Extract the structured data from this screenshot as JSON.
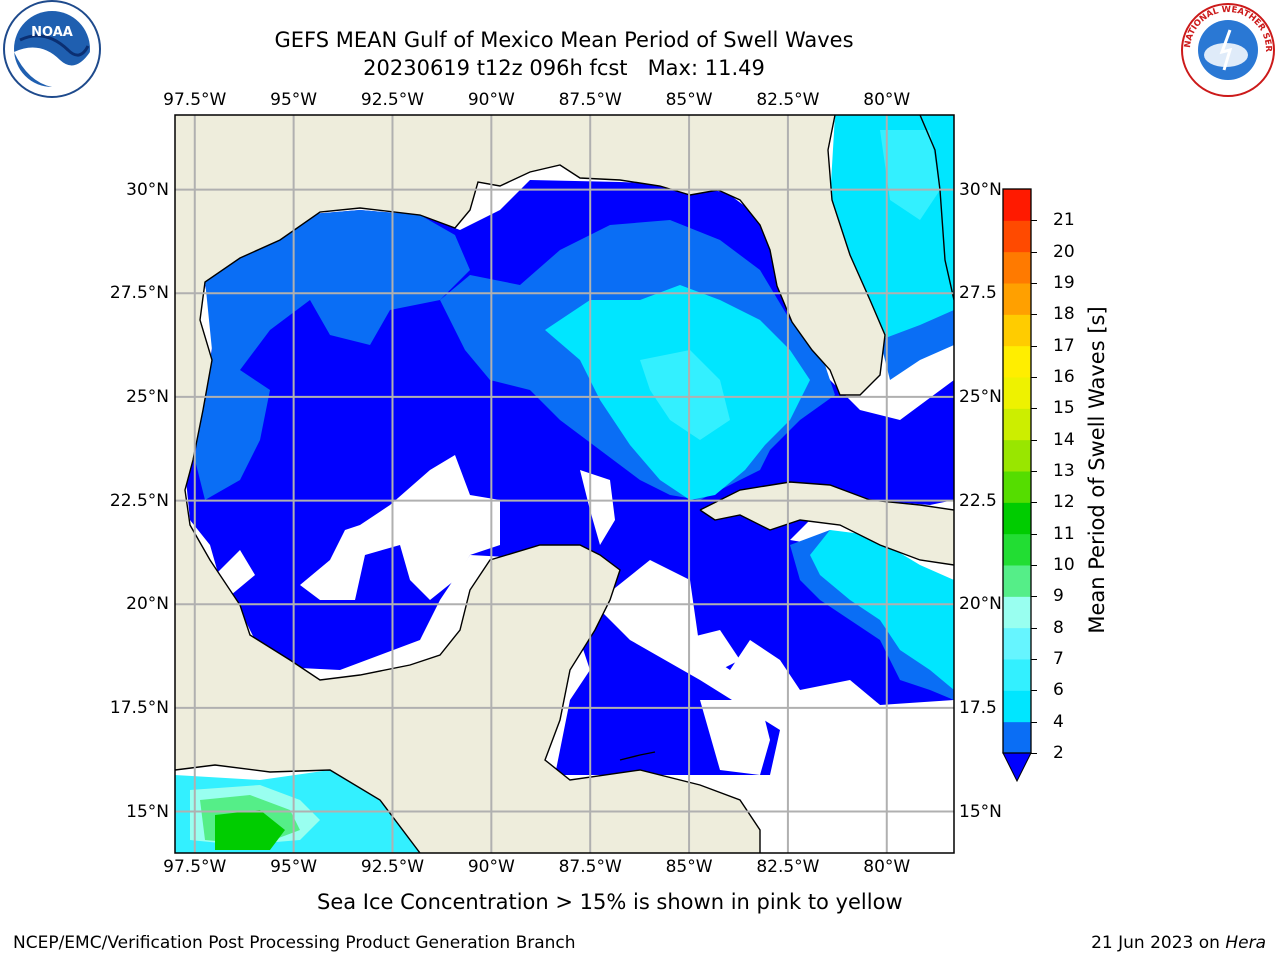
{
  "title": {
    "line1": "GEFS MEAN Gulf of Mexico Mean Period of Swell Waves",
    "line2": "20230619 t12z 096h fcst   Max: 11.49"
  },
  "map": {
    "lon_range": [
      -98.0,
      -78.3
    ],
    "lat_range": [
      14.0,
      31.8
    ],
    "lon_ticks": [
      {
        "value": -97.5,
        "label": "97.5°W"
      },
      {
        "value": -95.0,
        "label": "95°W"
      },
      {
        "value": -92.5,
        "label": "92.5°W"
      },
      {
        "value": -90.0,
        "label": "90°W"
      },
      {
        "value": -87.5,
        "label": "87.5°W"
      },
      {
        "value": -85.0,
        "label": "85°W"
      },
      {
        "value": -82.5,
        "label": "82.5°W"
      },
      {
        "value": -80.0,
        "label": "80°W"
      }
    ],
    "lat_ticks_left": [
      {
        "value": 30.0,
        "label": "30°N"
      },
      {
        "value": 27.5,
        "label": "27.5°N"
      },
      {
        "value": 25.0,
        "label": "25°N"
      },
      {
        "value": 22.5,
        "label": "22.5°N"
      },
      {
        "value": 20.0,
        "label": "20°N"
      },
      {
        "value": 17.5,
        "label": "17.5°N"
      },
      {
        "value": 15.0,
        "label": "15°N"
      }
    ],
    "lat_ticks_right": [
      {
        "value": 30.0,
        "label": "30°N"
      },
      {
        "value": 27.5,
        "label": "27.5"
      },
      {
        "value": 25.0,
        "label": "25°N"
      },
      {
        "value": 22.5,
        "label": "22.5"
      },
      {
        "value": 20.0,
        "label": "20°N"
      },
      {
        "value": 17.5,
        "label": "17.5"
      },
      {
        "value": 15.0,
        "label": "15°N"
      }
    ],
    "colors": {
      "land": "#eeeddc",
      "grid": "#b0b0b0",
      "coast": "#000000",
      "no_data": "#ffffff"
    }
  },
  "colorbar": {
    "label": "Mean Period of Swell Waves [s]",
    "ticks": [
      "2",
      "4",
      "6",
      "7",
      "8",
      "9",
      "10",
      "11",
      "12",
      "13",
      "14",
      "15",
      "16",
      "17",
      "18",
      "19",
      "20",
      "21"
    ],
    "colors": [
      "#0a6ef5",
      "#00e6ff",
      "#33f0ff",
      "#66f5ff",
      "#99fff0",
      "#55ee88",
      "#22dd33",
      "#00cc00",
      "#55dd00",
      "#99e600",
      "#ccee00",
      "#eef200",
      "#ffee00",
      "#ffcc00",
      "#ffa000",
      "#ff7a00",
      "#ff4a00",
      "#ff1a00"
    ],
    "extend_color": "#0000ff"
  },
  "notes": {
    "sea_ice": "Sea Ice Concentration > 15% is shown in pink to yellow"
  },
  "footer": {
    "left": "NCEP/EMC/Verification Post Processing Product Generation Branch",
    "right_date": "21 Jun 2023 on ",
    "right_host": "Hera"
  },
  "logos": {
    "noaa_text": "NOAA",
    "nws_text": "NATIONAL WEATHER SERVICE"
  }
}
